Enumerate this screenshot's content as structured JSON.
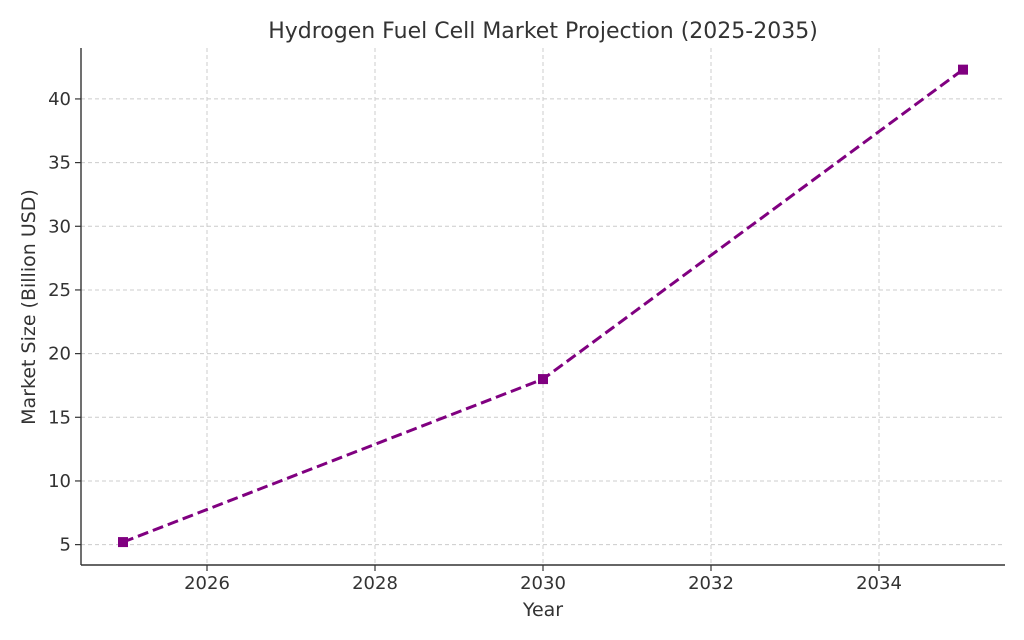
{
  "chart_data": {
    "type": "line",
    "title": "Hydrogen Fuel Cell Market Projection (2025-2035)",
    "xlabel": "Year",
    "ylabel": "Market Size (Billion USD)",
    "x": [
      2025,
      2030,
      2035
    ],
    "series": [
      {
        "values": [
          5.2,
          18.0,
          42.3
        ],
        "color": "#800080",
        "line_style": "dashed",
        "marker": "square"
      }
    ],
    "xlim": [
      2024.5,
      2035.5
    ],
    "ylim": [
      3.4,
      44.0
    ],
    "xticks": [
      2026,
      2028,
      2030,
      2032,
      2034
    ],
    "yticks": [
      5,
      10,
      15,
      20,
      25,
      30,
      35,
      40
    ],
    "grid": true,
    "grid_color": "#cccccc",
    "axis_color": "#333333"
  }
}
